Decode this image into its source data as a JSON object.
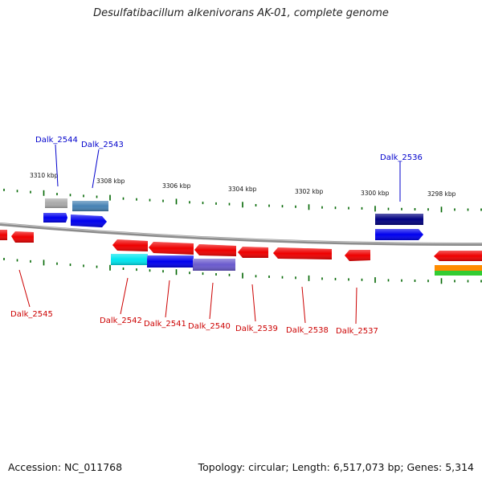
{
  "title": "Desulfatibacillum alkenivorans AK-01, complete genome",
  "footer": {
    "accession": "Accession: NC_011768",
    "summary": "Topology: circular; Length: 6,517,073 bp; Genes: 5,314"
  },
  "scale_labels": [
    "3310 kbp",
    "3308 kbp",
    "3306 kbp",
    "3304 kbp",
    "3302 kbp",
    "3300 kbp",
    "3298 kbp"
  ],
  "gene_labels_top": [
    "Dalk_2544",
    "Dalk_2543",
    "Dalk_2536"
  ],
  "gene_labels_bottom": [
    "Dalk_2545",
    "Dalk_2542",
    "Dalk_2541",
    "Dalk_2540",
    "Dalk_2539",
    "Dalk_2538",
    "Dalk_2537"
  ],
  "colors": {
    "forward_label": "#0000cc",
    "reverse_label": "#cc0000",
    "tick": "#006600",
    "backbone": "#8c8c8c",
    "red": "#ee0000",
    "blue": "#0000ee",
    "navy": "#000080",
    "steelblue": "#4682b4",
    "gray": "#aaaaaa",
    "cyan": "#00e5ee",
    "slateblue": "#6a5acd",
    "orange": "#ff8c00",
    "green": "#33cc33"
  }
}
